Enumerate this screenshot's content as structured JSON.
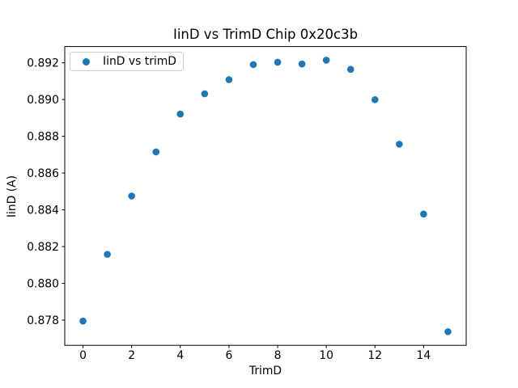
{
  "chart_data": {
    "type": "scatter",
    "title": "IinD vs TrimD Chip 0x20c3b",
    "xlabel": "TrimD",
    "ylabel": "IinD (A)",
    "grid": false,
    "legend_position": "upper left",
    "xlim": [
      -0.75,
      15.75
    ],
    "ylim": [
      0.87663,
      0.89288
    ],
    "x_tick_values": [
      0,
      2,
      4,
      6,
      8,
      10,
      12,
      14
    ],
    "x_tick_labels": [
      "0",
      "2",
      "4",
      "6",
      "8",
      "10",
      "12",
      "14"
    ],
    "y_tick_values": [
      0.878,
      0.88,
      0.882,
      0.884,
      0.886,
      0.888,
      0.89,
      0.892
    ],
    "y_tick_labels": [
      "0.878",
      "0.880",
      "0.882",
      "0.884",
      "0.886",
      "0.888",
      "0.890",
      "0.892"
    ],
    "series": [
      {
        "name": "IinD vs trimD",
        "color": "#1f77b4",
        "x": [
          0,
          1,
          2,
          3,
          4,
          5,
          6,
          7,
          8,
          9,
          10,
          11,
          12,
          13,
          14,
          15
        ],
        "y": [
          0.87795,
          0.88158,
          0.88475,
          0.88715,
          0.88921,
          0.89031,
          0.89108,
          0.8919,
          0.89203,
          0.89193,
          0.89214,
          0.89164,
          0.88999,
          0.88757,
          0.88377,
          0.87737
        ]
      }
    ]
  }
}
